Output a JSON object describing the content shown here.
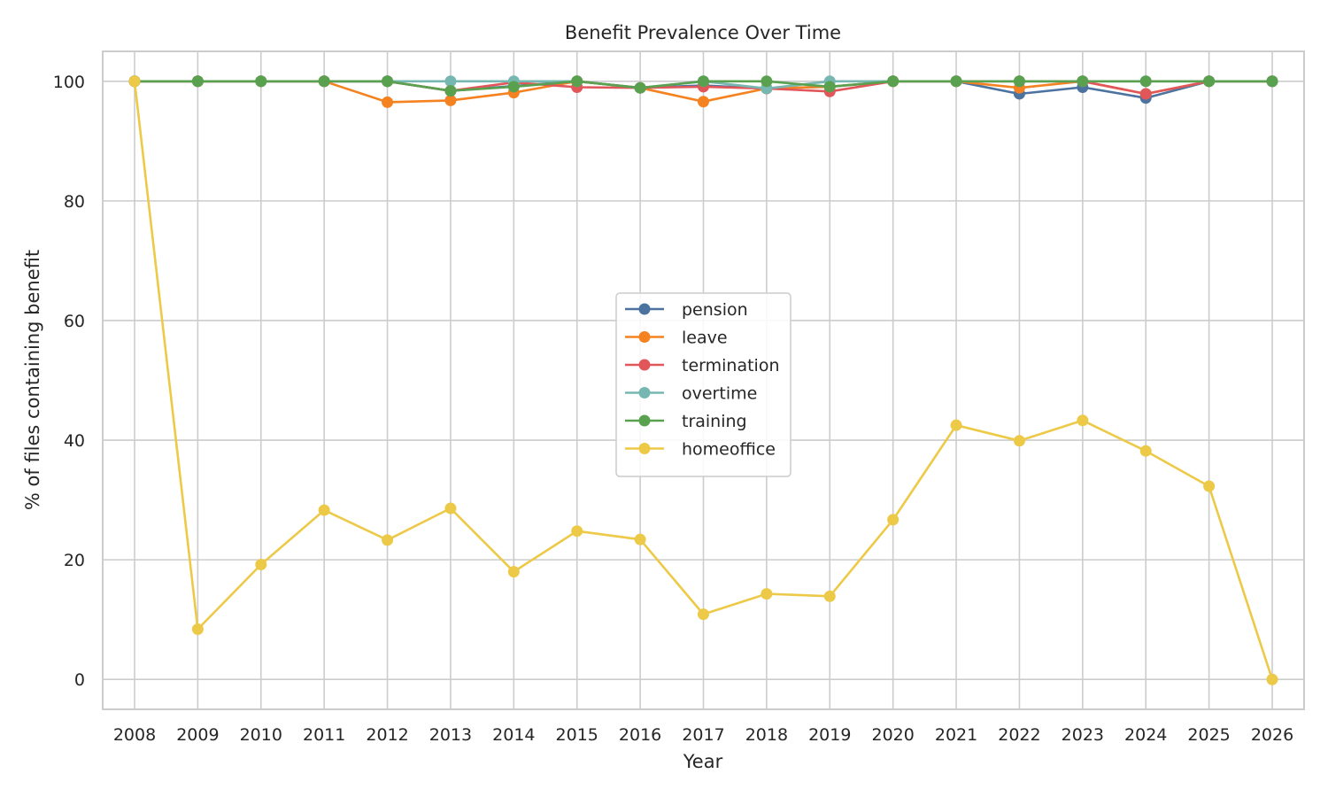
{
  "chart_data": {
    "type": "line",
    "title": "Benefit Prevalence Over Time",
    "xlabel": "Year",
    "ylabel": "% of files containing benefit",
    "x": [
      2008,
      2009,
      2010,
      2011,
      2012,
      2013,
      2014,
      2015,
      2016,
      2017,
      2018,
      2019,
      2020,
      2021,
      2022,
      2023,
      2024,
      2025,
      2026
    ],
    "x_ticks": [
      "2008",
      "2009",
      "2010",
      "2011",
      "2012",
      "2013",
      "2014",
      "2015",
      "2016",
      "2017",
      "2018",
      "2019",
      "2020",
      "2021",
      "2022",
      "2023",
      "2024",
      "2025",
      "2026"
    ],
    "ylim": [
      -5,
      105
    ],
    "y_ticks": [
      0,
      20,
      40,
      60,
      80,
      100
    ],
    "y_tick_labels": [
      "0",
      "20",
      "40",
      "60",
      "80",
      "100"
    ],
    "grid": true,
    "legend_position": "center",
    "series": [
      {
        "name": "pension",
        "color": "#4c72a0",
        "values": [
          100,
          100,
          100,
          100,
          100,
          98.4,
          99.2,
          100,
          98.9,
          99.3,
          98.8,
          99.1,
          100,
          100,
          97.9,
          99,
          97.2,
          100,
          100
        ]
      },
      {
        "name": "leave",
        "color": "#f58220",
        "values": [
          100,
          100,
          100,
          100,
          96.5,
          96.8,
          98.1,
          100,
          98.9,
          96.6,
          98.8,
          99.1,
          100,
          100,
          98.9,
          100,
          97.9,
          100,
          100
        ]
      },
      {
        "name": "termination",
        "color": "#e15759",
        "values": [
          100,
          100,
          100,
          100,
          100,
          98.4,
          99.8,
          99,
          98.9,
          99.1,
          98.8,
          98.3,
          100,
          100,
          100,
          100,
          97.9,
          100,
          100
        ]
      },
      {
        "name": "overtime",
        "color": "#76b7b2",
        "values": [
          100,
          100,
          100,
          100,
          100,
          100,
          100,
          100,
          98.9,
          100,
          98.8,
          100,
          100,
          100,
          100,
          100,
          100,
          100,
          100
        ]
      },
      {
        "name": "training",
        "color": "#59a14f",
        "values": [
          100,
          100,
          100,
          100,
          100,
          98.4,
          99.1,
          100,
          98.9,
          100,
          100,
          99.1,
          100,
          100,
          100,
          100,
          100,
          100,
          100
        ]
      },
      {
        "name": "homeoffice",
        "color": "#edc948",
        "values": [
          100,
          8.4,
          19.2,
          28.3,
          23.3,
          28.6,
          18.0,
          24.8,
          23.4,
          10.9,
          14.3,
          13.9,
          26.7,
          42.5,
          39.9,
          43.3,
          38.2,
          32.3,
          0
        ]
      }
    ]
  }
}
